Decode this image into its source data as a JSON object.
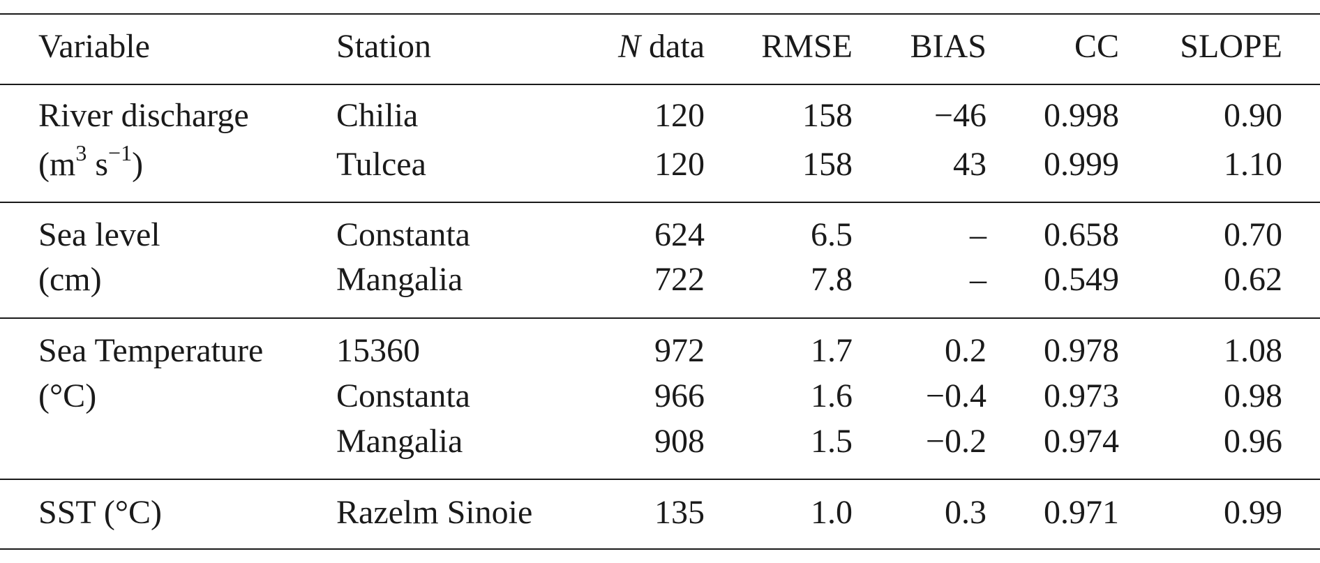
{
  "table": {
    "headers": {
      "variable": "Variable",
      "station": "Station",
      "n_data_italic": "N",
      "n_data_rest": " data",
      "rmse": "RMSE",
      "bias": "BIAS",
      "cc": "CC",
      "slope": "SLOPE"
    },
    "groups": [
      {
        "variable_line1": "River discharge",
        "variable_line2_pre": "(m",
        "variable_line2_sup1": "3",
        "variable_line2_mid": " s",
        "variable_line2_sup2": "−1",
        "variable_line2_post": ")",
        "rows": [
          {
            "station": "Chilia",
            "n": "120",
            "rmse": "158",
            "bias": "−46",
            "cc": "0.998",
            "slope": "0.90"
          },
          {
            "station": "Tulcea",
            "n": "120",
            "rmse": "158",
            "bias": "43",
            "cc": "0.999",
            "slope": "1.10"
          }
        ]
      },
      {
        "variable_line1": "Sea level",
        "variable_line2": "(cm)",
        "rows": [
          {
            "station": "Constanta",
            "n": "624",
            "rmse": "6.5",
            "bias": "–",
            "cc": "0.658",
            "slope": "0.70"
          },
          {
            "station": "Mangalia",
            "n": "722",
            "rmse": "7.8",
            "bias": "–",
            "cc": "0.549",
            "slope": "0.62"
          }
        ]
      },
      {
        "variable_line1": "Sea Temperature",
        "variable_line2": "(°C)",
        "rows": [
          {
            "station": "15360",
            "n": "972",
            "rmse": "1.7",
            "bias": "0.2",
            "cc": "0.978",
            "slope": "1.08"
          },
          {
            "station": "Constanta",
            "n": "966",
            "rmse": "1.6",
            "bias": "−0.4",
            "cc": "0.973",
            "slope": "0.98"
          },
          {
            "station": "Mangalia",
            "n": "908",
            "rmse": "1.5",
            "bias": "−0.2",
            "cc": "0.974",
            "slope": "0.96"
          }
        ]
      },
      {
        "variable_line1": "SST (°C)",
        "rows": [
          {
            "station": "Razelm Sinoie",
            "n": "135",
            "rmse": "1.0",
            "bias": "0.3",
            "cc": "0.971",
            "slope": "0.99"
          }
        ]
      }
    ]
  }
}
